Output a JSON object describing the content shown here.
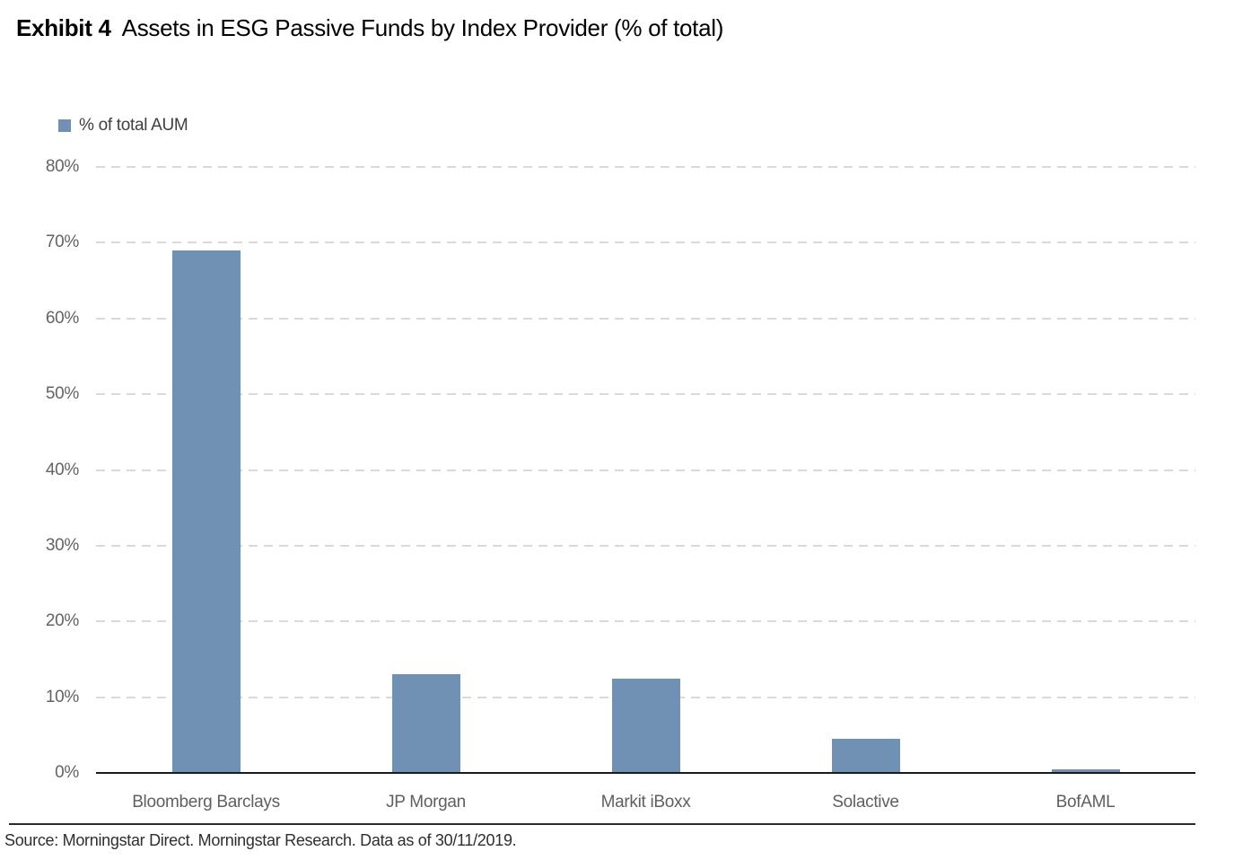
{
  "figure": {
    "exhibit_label": "Exhibit 4",
    "title": "Assets in ESG Passive Funds by Index Provider (% of total)",
    "source": "Source: Morningstar Direct. Morningstar Research. Data as of 30/11/2019."
  },
  "legend": {
    "label": "% of total AUM"
  },
  "colors": {
    "bar_fill": "#7191b4",
    "gridline": "#d9d9d9",
    "zero_axis": "#1a1a1a",
    "tick_text": "#636363",
    "category_text": "#5f5f5f"
  },
  "chart_data": {
    "type": "bar",
    "title": "Assets in ESG Passive Funds by Index Provider (% of total)",
    "categories": [
      "Bloomberg Barclays",
      "JP Morgan",
      "Markit iBoxx",
      "Solactive",
      "BofAML"
    ],
    "values": [
      69,
      13,
      12.5,
      4.5,
      0.5
    ],
    "series_name": "% of total AUM",
    "xlabel": "",
    "ylabel": "",
    "ylim": [
      0,
      80
    ],
    "yticks": [
      "0%",
      "10%",
      "20%",
      "30%",
      "40%",
      "50%",
      "60%",
      "70%",
      "80%"
    ],
    "grid": "horizontal-dashed",
    "legend_position": "top-left"
  }
}
